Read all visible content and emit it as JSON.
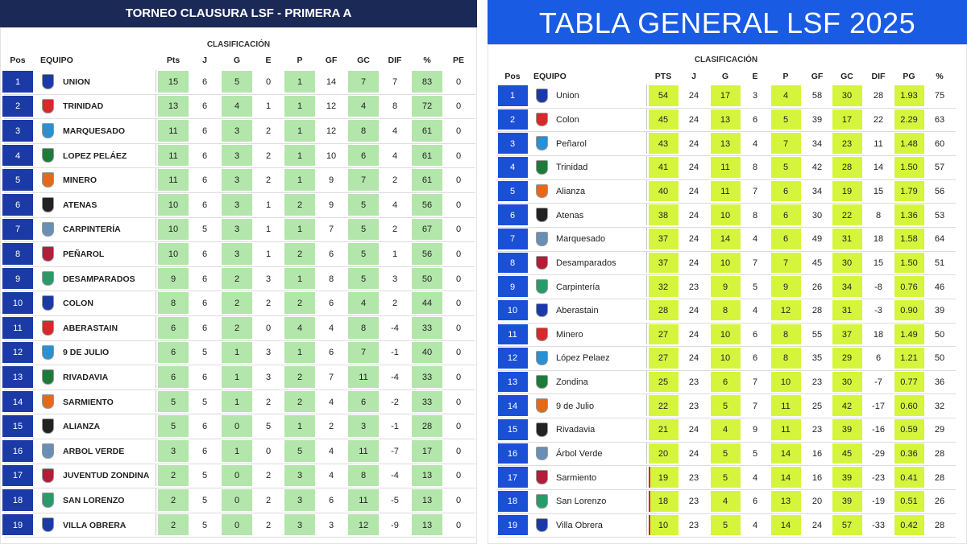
{
  "left_table": {
    "title": "TORNEO CLAUSURA LSF - PRIMERA A",
    "subtitle": "CLASIFICACIÓN",
    "headers": [
      "Pos",
      "EQUIPO",
      "Pts",
      "J",
      "G",
      "E",
      "P",
      "GF",
      "GC",
      "DIF",
      "%",
      "PE"
    ],
    "rows": [
      [
        "1",
        "UNION",
        "15",
        "6",
        "5",
        "0",
        "1",
        "14",
        "7",
        "7",
        "83",
        "0"
      ],
      [
        "2",
        "TRINIDAD",
        "13",
        "6",
        "4",
        "1",
        "1",
        "12",
        "4",
        "8",
        "72",
        "0"
      ],
      [
        "3",
        "MARQUESADO",
        "11",
        "6",
        "3",
        "2",
        "1",
        "12",
        "8",
        "4",
        "61",
        "0"
      ],
      [
        "4",
        "LOPEZ PELÁEZ",
        "11",
        "6",
        "3",
        "2",
        "1",
        "10",
        "6",
        "4",
        "61",
        "0"
      ],
      [
        "5",
        "MINERO",
        "11",
        "6",
        "3",
        "2",
        "1",
        "9",
        "7",
        "2",
        "61",
        "0"
      ],
      [
        "6",
        "ATENAS",
        "10",
        "6",
        "3",
        "1",
        "2",
        "9",
        "5",
        "4",
        "56",
        "0"
      ],
      [
        "7",
        "CARPINTERÍA",
        "10",
        "5",
        "3",
        "1",
        "1",
        "7",
        "5",
        "2",
        "67",
        "0"
      ],
      [
        "8",
        "PEÑAROL",
        "10",
        "6",
        "3",
        "1",
        "2",
        "6",
        "5",
        "1",
        "56",
        "0"
      ],
      [
        "9",
        "DESAMPARADOS",
        "9",
        "6",
        "2",
        "3",
        "1",
        "8",
        "5",
        "3",
        "50",
        "0"
      ],
      [
        "10",
        "COLON",
        "8",
        "6",
        "2",
        "2",
        "2",
        "6",
        "4",
        "2",
        "44",
        "0"
      ],
      [
        "11",
        "ABERASTAIN",
        "6",
        "6",
        "2",
        "0",
        "4",
        "4",
        "8",
        "-4",
        "33",
        "0"
      ],
      [
        "12",
        "9 DE JULIO",
        "6",
        "5",
        "1",
        "3",
        "1",
        "6",
        "7",
        "-1",
        "40",
        "0"
      ],
      [
        "13",
        "RIVADAVIA",
        "6",
        "6",
        "1",
        "3",
        "2",
        "7",
        "11",
        "-4",
        "33",
        "0"
      ],
      [
        "14",
        "SARMIENTO",
        "5",
        "5",
        "1",
        "2",
        "2",
        "4",
        "6",
        "-2",
        "33",
        "0"
      ],
      [
        "15",
        "ALIANZA",
        "5",
        "6",
        "0",
        "5",
        "1",
        "2",
        "3",
        "-1",
        "28",
        "0"
      ],
      [
        "16",
        "ARBOL VERDE",
        "3",
        "6",
        "1",
        "0",
        "5",
        "4",
        "11",
        "-7",
        "17",
        "0"
      ],
      [
        "17",
        "JUVENTUD ZONDINA",
        "2",
        "5",
        "0",
        "2",
        "3",
        "4",
        "8",
        "-4",
        "13",
        "0"
      ],
      [
        "18",
        "SAN LORENZO",
        "2",
        "5",
        "0",
        "2",
        "3",
        "6",
        "11",
        "-5",
        "13",
        "0"
      ],
      [
        "19",
        "VILLA OBRERA",
        "2",
        "5",
        "0",
        "2",
        "3",
        "3",
        "12",
        "-9",
        "13",
        "0"
      ]
    ]
  },
  "right_table": {
    "title": "TABLA GENERAL LSF  2025",
    "subtitle": "CLASIFICACIÓN",
    "headers": [
      "Pos",
      "EQUIPO",
      "PTS",
      "J",
      "G",
      "E",
      "P",
      "GF",
      "GC",
      "DIF",
      "PG",
      "%"
    ],
    "rows": [
      [
        "1",
        "Union",
        "54",
        "24",
        "17",
        "3",
        "4",
        "58",
        "30",
        "28",
        "1.93",
        "75"
      ],
      [
        "2",
        "Colon",
        "45",
        "24",
        "13",
        "6",
        "5",
        "39",
        "17",
        "22",
        "2.29",
        "63"
      ],
      [
        "3",
        "Peñarol",
        "43",
        "24",
        "13",
        "4",
        "7",
        "34",
        "23",
        "11",
        "1.48",
        "60"
      ],
      [
        "4",
        "Trinidad",
        "41",
        "24",
        "11",
        "8",
        "5",
        "42",
        "28",
        "14",
        "1.50",
        "57"
      ],
      [
        "5",
        "Alianza",
        "40",
        "24",
        "11",
        "7",
        "6",
        "34",
        "19",
        "15",
        "1.79",
        "56"
      ],
      [
        "6",
        "Atenas",
        "38",
        "24",
        "10",
        "8",
        "6",
        "30",
        "22",
        "8",
        "1.36",
        "53"
      ],
      [
        "7",
        "Marquesado",
        "37",
        "24",
        "14",
        "4",
        "6",
        "49",
        "31",
        "18",
        "1.58",
        "64"
      ],
      [
        "8",
        "Desamparados",
        "37",
        "24",
        "10",
        "7",
        "7",
        "45",
        "30",
        "15",
        "1.50",
        "51"
      ],
      [
        "9",
        "Carpintería",
        "32",
        "23",
        "9",
        "5",
        "9",
        "26",
        "34",
        "-8",
        "0.76",
        "46"
      ],
      [
        "10",
        "Aberastain",
        "28",
        "24",
        "8",
        "4",
        "12",
        "28",
        "31",
        "-3",
        "0.90",
        "39"
      ],
      [
        "11",
        "Minero",
        "27",
        "24",
        "10",
        "6",
        "8",
        "55",
        "37",
        "18",
        "1.49",
        "50"
      ],
      [
        "12",
        "López Pelaez",
        "27",
        "24",
        "10",
        "6",
        "8",
        "35",
        "29",
        "6",
        "1.21",
        "50"
      ],
      [
        "13",
        "Zondina",
        "25",
        "23",
        "6",
        "7",
        "10",
        "23",
        "30",
        "-7",
        "0.77",
        "36"
      ],
      [
        "14",
        "9 de Julio",
        "22",
        "23",
        "5",
        "7",
        "11",
        "25",
        "42",
        "-17",
        "0.60",
        "32"
      ],
      [
        "15",
        "Rivadavia",
        "21",
        "24",
        "4",
        "9",
        "11",
        "23",
        "39",
        "-16",
        "0.59",
        "29"
      ],
      [
        "16",
        "Árbol Verde",
        "20",
        "24",
        "5",
        "5",
        "14",
        "16",
        "45",
        "-29",
        "0.36",
        "28"
      ],
      [
        "17",
        "Sarmiento",
        "19",
        "23",
        "5",
        "4",
        "14",
        "16",
        "39",
        "-23",
        "0.41",
        "28"
      ],
      [
        "18",
        "San Lorenzo",
        "18",
        "23",
        "4",
        "6",
        "13",
        "20",
        "39",
        "-19",
        "0.51",
        "26"
      ],
      [
        "19",
        "Villa Obrera",
        "10",
        "23",
        "5",
        "4",
        "14",
        "24",
        "57",
        "-33",
        "0.42",
        "28"
      ]
    ]
  }
}
